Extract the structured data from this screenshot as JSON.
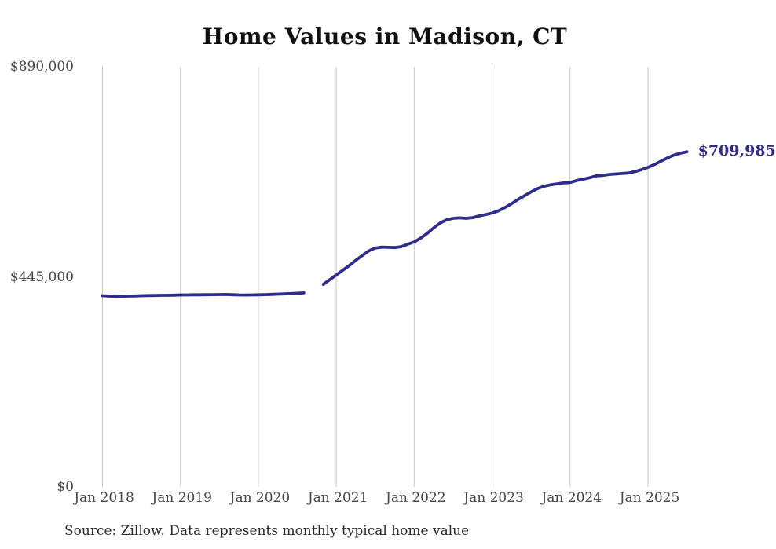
{
  "chart_data": {
    "type": "line",
    "title": "Home Values in Madison, CT",
    "source_note": "Source: Zillow. Data represents monthly typical home value",
    "end_label": "$709,985",
    "latest_value": 709985,
    "line_color": "#302c8e",
    "grid_color": "#cacaca",
    "grid": "vertical-only",
    "legend": "none",
    "ylim": [
      0,
      890000
    ],
    "y_tick_labels": [
      {
        "label": "$890,000",
        "value": 890000
      },
      {
        "label": "$445,000",
        "value": 445000
      },
      {
        "label": "$0",
        "value": 0
      }
    ],
    "x_tick_labels": [
      "Jan 2018",
      "Jan 2019",
      "Jan 2020",
      "Jan 2021",
      "Jan 2022",
      "Jan 2023",
      "Jan 2024",
      "Jan 2025"
    ],
    "series": [
      {
        "name": "Monthly typical home value",
        "x": [
          "2018-01",
          "2018-02",
          "2018-03",
          "2018-04",
          "2018-05",
          "2018-06",
          "2018-07",
          "2018-08",
          "2018-09",
          "2018-10",
          "2018-11",
          "2018-12",
          "2019-01",
          "2019-02",
          "2019-03",
          "2019-04",
          "2019-05",
          "2019-06",
          "2019-07",
          "2019-08",
          "2019-09",
          "2019-10",
          "2019-11",
          "2019-12",
          "2020-01",
          "2020-02",
          "2020-03",
          "2020-04",
          "2020-05",
          "2020-06",
          "2020-07",
          "2020-08",
          "2020-09",
          "2020-10",
          "2020-11",
          "2020-12",
          "2021-01",
          "2021-02",
          "2021-03",
          "2021-04",
          "2021-05",
          "2021-06",
          "2021-07",
          "2021-08",
          "2021-09",
          "2021-10",
          "2021-11",
          "2021-12",
          "2022-01",
          "2022-02",
          "2022-03",
          "2022-04",
          "2022-05",
          "2022-06",
          "2022-07",
          "2022-08",
          "2022-09",
          "2022-10",
          "2022-11",
          "2022-12",
          "2023-01",
          "2023-02",
          "2023-03",
          "2023-04",
          "2023-05",
          "2023-06",
          "2023-07",
          "2023-08",
          "2023-09",
          "2023-10",
          "2023-11",
          "2023-12",
          "2024-01",
          "2024-02",
          "2024-03",
          "2024-04",
          "2024-05",
          "2024-06",
          "2024-07",
          "2024-08",
          "2024-09",
          "2024-10",
          "2024-11",
          "2024-12",
          "2025-01",
          "2025-02",
          "2025-03",
          "2025-04",
          "2025-05",
          "2025-06",
          "2025-07"
        ],
        "values": [
          405000,
          404200,
          403700,
          403700,
          404200,
          404500,
          405100,
          405400,
          405600,
          405900,
          405900,
          406200,
          406700,
          406800,
          407000,
          407100,
          407200,
          407400,
          407600,
          407800,
          407300,
          406800,
          406600,
          406700,
          407000,
          407400,
          407900,
          408400,
          408900,
          409600,
          410300,
          411000,
          null,
          null,
          429000,
          439000,
          449000,
          459000,
          469000,
          480000,
          490000,
          500000,
          506000,
          508000,
          507500,
          507000,
          509000,
          514000,
          519000,
          527000,
          537000,
          549000,
          559000,
          566000,
          569000,
          570000,
          569000,
          570500,
          574000,
          577000,
          580000,
          585000,
          592000,
          600000,
          609000,
          617000,
          625000,
          632000,
          637000,
          640000,
          642000,
          644000,
          645000,
          649000,
          652000,
          655000,
          659000,
          660000,
          662000,
          663000,
          664000,
          665000,
          668000,
          672000,
          677000,
          683000,
          690000,
          697000,
          703000,
          707000,
          709985
        ]
      }
    ]
  }
}
